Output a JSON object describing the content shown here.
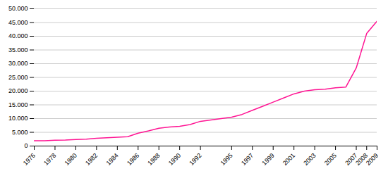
{
  "chart_data": {
    "type": "line",
    "x": [
      1976,
      1977,
      1978,
      1979,
      1980,
      1981,
      1982,
      1983,
      1984,
      1985,
      1986,
      1987,
      1988,
      1989,
      1990,
      1991,
      1992,
      1993,
      1994,
      1995,
      1996,
      1997,
      1998,
      1999,
      2000,
      2001,
      2002,
      2003,
      2004,
      2005,
      2006,
      2007,
      2008,
      2009
    ],
    "values": [
      1900,
      1950,
      2100,
      2200,
      2400,
      2500,
      2800,
      3000,
      3200,
      3400,
      4700,
      5500,
      6500,
      6900,
      7200,
      7800,
      9000,
      9500,
      10000,
      10500,
      11500,
      13000,
      14500,
      16000,
      17500,
      19000,
      20000,
      20500,
      20700,
      21200,
      21500,
      28500,
      41000,
      45500
    ],
    "color": "#FF1493",
    "xlim": [
      1976,
      2009
    ],
    "xticks": [
      1976,
      1978,
      1980,
      1982,
      1984,
      1986,
      1988,
      1990,
      1992,
      1995,
      1997,
      1999,
      2001,
      2003,
      2005,
      2007,
      2008,
      2009
    ],
    "ylim": [
      0,
      50000
    ],
    "yticks": [
      0,
      {
        "value": 5000,
        "label": "5.000"
      },
      {
        "value": 10000,
        "label": "10.000"
      },
      {
        "value": 15000,
        "label": "15.000"
      },
      {
        "value": 20000,
        "label": "20.000"
      },
      {
        "value": 25000,
        "label": "25.000"
      },
      {
        "value": 30000,
        "label": "30.000"
      },
      {
        "value": 35000,
        "label": "35.000"
      },
      {
        "value": 40000,
        "label": "40.000"
      },
      {
        "value": 45000,
        "label": "45.000"
      },
      {
        "value": 50000,
        "label": "50.000"
      }
    ],
    "grid": "y"
  }
}
